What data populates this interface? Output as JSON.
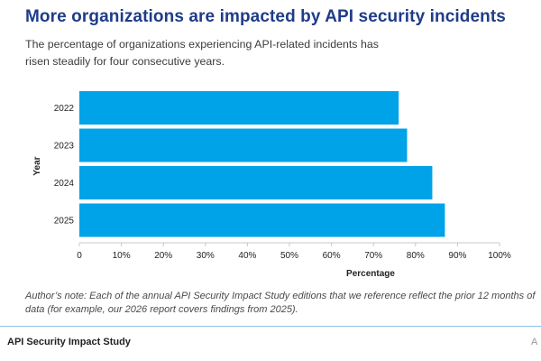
{
  "title": "More organizations are impacted by API security incidents",
  "subtitle": "The percentage of organizations experiencing API-related incidents has risen steadily for four consecutive years.",
  "note": "Author’s note: Each of the annual API Security Impact Study editions that we reference reflect the prior 12 months of data (for example, our 2026 report covers findings from 2025).",
  "footer": {
    "left": "API Security Impact Study",
    "right": "A"
  },
  "colors": {
    "bar": "#00a2e8",
    "title": "#1f3c88"
  },
  "chart_data": {
    "type": "bar",
    "orientation": "horizontal",
    "categories": [
      "2022",
      "2023",
      "2024",
      "2025"
    ],
    "values": [
      76,
      78,
      84,
      87
    ],
    "xlabel": "Percentage",
    "ylabel": "Year",
    "xlim": [
      0,
      100
    ],
    "xticks": [
      "0",
      "10%",
      "20%",
      "30%",
      "40%",
      "50%",
      "60%",
      "70%",
      "80%",
      "90%",
      "100%"
    ],
    "grid": false
  }
}
